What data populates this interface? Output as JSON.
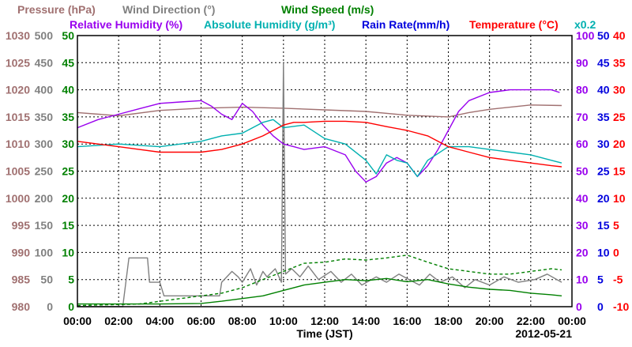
{
  "chart_data": {
    "type": "line",
    "title_row1": [
      {
        "text": "Pressure (hPa)",
        "color": "#a07070"
      },
      {
        "text": "Wind Direction (°)",
        "color": "#808080"
      },
      {
        "text": "Wind Speed (m/s)",
        "color": "#008000"
      }
    ],
    "title_row2": [
      {
        "text": "Relative Humidity (%)",
        "color": "#9900ee"
      },
      {
        "text": "Absolute Humidity (g/m³)",
        "color": "#00b0b0"
      },
      {
        "text": "Rain Rate(mm/h)",
        "color": "#0000dd"
      },
      {
        "text": "Temperature (°C)",
        "color": "#ff0000"
      }
    ],
    "multiplier_label": "x0.2",
    "xlabel": "Time (JST)",
    "date_label": "2012-05-21",
    "x_ticks": [
      "00:00",
      "02:00",
      "04:00",
      "06:00",
      "08:00",
      "10:00",
      "12:00",
      "14:00",
      "16:00",
      "18:00",
      "20:00",
      "22:00",
      "00:00"
    ],
    "xlim_hours": [
      0,
      24
    ],
    "axes": {
      "pressure": {
        "color": "#a07070",
        "range": [
          980,
          1030
        ],
        "ticks": [
          "1030",
          "1025",
          "1020",
          "1015",
          "1010",
          "1005",
          "1000",
          "995",
          "990",
          "985",
          "980"
        ]
      },
      "wind_direction": {
        "color": "#808080",
        "range": [
          0,
          500
        ],
        "ticks": [
          "500",
          "450",
          "400",
          "350",
          "300",
          "250",
          "200",
          "150",
          "100",
          "50",
          "0"
        ]
      },
      "wind_speed": {
        "color": "#008000",
        "range": [
          0,
          50
        ],
        "ticks": [
          "50",
          "45",
          "40",
          "35",
          "30",
          "25",
          "20",
          "15",
          "10",
          "5",
          "0"
        ]
      },
      "relative_humidity": {
        "color": "#9900ee",
        "range": [
          0,
          100
        ],
        "ticks": [
          "100",
          "90",
          "80",
          "70",
          "60",
          "50",
          "40",
          "30",
          "20",
          "10",
          "0"
        ]
      },
      "rain_rate": {
        "color": "#0000dd",
        "range": [
          0,
          50
        ],
        "ticks": [
          "50",
          "45",
          "40",
          "35",
          "30",
          "25",
          "20",
          "15",
          "10",
          "5",
          "0"
        ]
      },
      "temperature": {
        "color": "#ff0000",
        "range": [
          -10,
          40
        ],
        "ticks": [
          "40",
          "35",
          "30",
          "25",
          "20",
          "15",
          "10",
          "5",
          "0",
          "-5",
          "-10"
        ]
      }
    },
    "series": [
      {
        "name": "Pressure",
        "axis": "pressure",
        "color": "#a07070",
        "x": [
          0,
          2,
          4,
          6,
          8,
          10,
          12,
          14,
          16,
          18,
          19,
          20,
          22,
          23.5
        ],
        "y": [
          1015.8,
          1015.2,
          1016.2,
          1016.6,
          1016.8,
          1016.6,
          1016.3,
          1016.0,
          1015.3,
          1015.0,
          1015.8,
          1016.4,
          1017.2,
          1017.1
        ]
      },
      {
        "name": "Wind Direction",
        "axis": "wind_direction",
        "color": "#808080",
        "x": [
          0,
          1.3,
          1.7,
          2.2,
          2.5,
          2.7,
          3.4,
          3.5,
          4.0,
          4.2,
          5.5,
          6.2,
          6.9,
          7.0,
          7.5,
          7.8,
          8.0,
          8.4,
          8.7,
          9.0,
          9.2,
          9.6,
          9.9,
          10.0,
          10.1,
          10.4,
          10.8,
          11.2,
          11.7,
          12.3,
          12.8,
          13.3,
          13.8,
          14.5,
          15.0,
          15.6,
          16.1,
          16.6,
          17.1,
          17.6,
          18.2,
          18.8,
          19.3,
          20.0,
          20.7,
          21.4,
          22.2,
          22.8,
          23.5
        ],
        "y": [
          0,
          0,
          0,
          0,
          90,
          90,
          90,
          45,
          45,
          20,
          20,
          20,
          20,
          45,
          65,
          55,
          45,
          70,
          40,
          65,
          55,
          70,
          45,
          450,
          60,
          70,
          55,
          75,
          50,
          65,
          45,
          60,
          40,
          55,
          45,
          60,
          50,
          40,
          60,
          45,
          55,
          35,
          50,
          40,
          55,
          45,
          50,
          60,
          45
        ]
      },
      {
        "name": "Wind Speed (avg)",
        "axis": "wind_speed",
        "color": "#008000",
        "x": [
          0,
          2,
          4,
          6,
          7,
          8,
          9,
          10,
          11,
          12,
          13,
          14,
          15,
          16,
          17,
          18,
          19,
          20,
          21,
          22,
          23,
          23.5
        ],
        "y": [
          0.5,
          0.5,
          0.5,
          0.6,
          1.0,
          1.5,
          2.0,
          3.0,
          4.0,
          4.5,
          5.0,
          4.8,
          5.2,
          4.6,
          5.0,
          4.2,
          3.6,
          3.2,
          3.0,
          2.5,
          2.2,
          2.0
        ]
      },
      {
        "name": "Wind Speed (gust)",
        "axis": "wind_speed",
        "color": "#008000",
        "dashed": true,
        "x": [
          0,
          3,
          5,
          6,
          7,
          8,
          9,
          10,
          11,
          12,
          13,
          14,
          15,
          16,
          17,
          18,
          19,
          20,
          21,
          22,
          23,
          23.5
        ],
        "y": [
          0.2,
          0.5,
          1.5,
          2.0,
          2.5,
          3.5,
          5.0,
          6.5,
          8.0,
          8.2,
          8.8,
          8.6,
          9.0,
          9.5,
          8.2,
          7.0,
          6.5,
          6.0,
          6.0,
          6.5,
          7.0,
          6.8
        ]
      },
      {
        "name": "Relative Humidity",
        "axis": "relative_humidity",
        "color": "#9900ee",
        "x": [
          0,
          1,
          2,
          3,
          4,
          5,
          6,
          6.5,
          7,
          7.5,
          8,
          8.5,
          9,
          9.5,
          10,
          10.5,
          11,
          12,
          13,
          13.5,
          14,
          14.5,
          15,
          15.5,
          16,
          16.5,
          17,
          17.5,
          18,
          18.5,
          19,
          20,
          21,
          22,
          23,
          23.4
        ],
        "y": [
          66,
          69,
          71,
          73,
          75,
          75.5,
          76,
          74,
          71,
          69,
          75,
          72,
          67,
          63,
          60,
          59,
          58,
          59,
          56,
          50,
          46,
          48,
          53,
          55,
          53,
          48,
          52,
          58,
          65,
          72,
          76,
          79,
          80,
          80,
          80,
          79
        ]
      },
      {
        "name": "Absolute Humidity",
        "axis": "wind_speed",
        "color": "#00b0b0",
        "x": [
          0,
          2,
          4,
          6,
          7,
          8,
          9,
          9.5,
          10,
          11,
          12,
          13,
          14,
          14.5,
          15,
          15.5,
          16,
          16.5,
          17,
          18,
          19,
          20,
          21,
          22,
          23,
          23.5
        ],
        "y": [
          29.5,
          30.0,
          29.5,
          30.5,
          31.5,
          32.0,
          34.0,
          34.5,
          33.0,
          33.5,
          31.0,
          30.0,
          27.0,
          24.5,
          28.0,
          27.0,
          26.5,
          24.0,
          27.0,
          29.5,
          29.5,
          29.0,
          28.5,
          28.0,
          27.0,
          26.5
        ]
      },
      {
        "name": "Temperature",
        "axis": "temperature",
        "color": "#ff0000",
        "x": [
          0,
          1,
          2,
          3,
          4,
          5,
          6,
          7,
          8,
          9,
          9.5,
          10,
          10.5,
          11,
          12,
          13,
          14,
          15,
          16,
          17,
          18,
          19,
          20,
          21,
          22,
          23,
          23.5
        ],
        "y": [
          20.5,
          20.0,
          19.5,
          19.0,
          18.5,
          18.5,
          18.5,
          19.0,
          20.0,
          21.5,
          22.5,
          23.5,
          24.0,
          24.0,
          24.2,
          24.2,
          24.0,
          23.2,
          22.5,
          21.5,
          19.5,
          18.5,
          17.5,
          17.0,
          16.5,
          16.0,
          15.8
        ]
      }
    ]
  }
}
